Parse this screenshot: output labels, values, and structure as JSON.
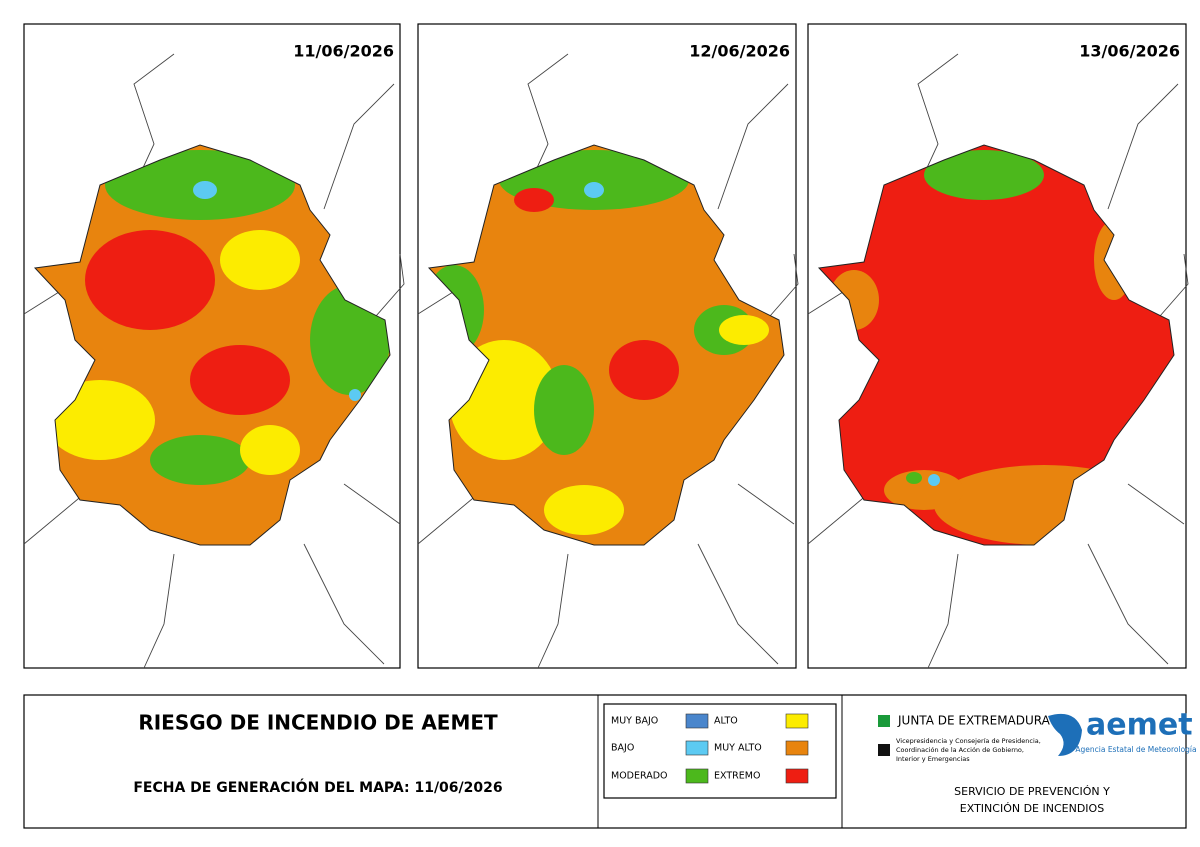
{
  "maps": [
    {
      "date": "11/06/2026"
    },
    {
      "date": "12/06/2026"
    },
    {
      "date": "13/06/2026"
    }
  ],
  "title": "RIESGO DE INCENDIO DE AEMET",
  "generation": "FECHA DE GENERACIÓN DEL MAPA: 11/06/2026",
  "legend": [
    {
      "name": "MUY BAJO",
      "color": "#4a86cc"
    },
    {
      "name": "BAJO",
      "color": "#5ccaf2"
    },
    {
      "name": "MODERADO",
      "color": "#4cb81c"
    },
    {
      "name": "ALTO",
      "color": "#fcec00"
    },
    {
      "name": "MUY ALTO",
      "color": "#e8840e"
    },
    {
      "name": "EXTREMO",
      "color": "#ee1e12"
    }
  ],
  "junta": {
    "name": "JUNTA DE EXTREMADURA",
    "lines": [
      "Vicepresidencia y Consejería de Presidencia,",
      "Coordinación de la Acción de Gobierno,",
      "Interior y Emergencias"
    ]
  },
  "aemet": {
    "name": "aemet",
    "subtitle": "Agencia Estatal de Meteorología"
  },
  "service": [
    "SERVICIO DE PREVENCIÓN Y",
    "EXTINCIÓN DE INCENDIOS"
  ]
}
